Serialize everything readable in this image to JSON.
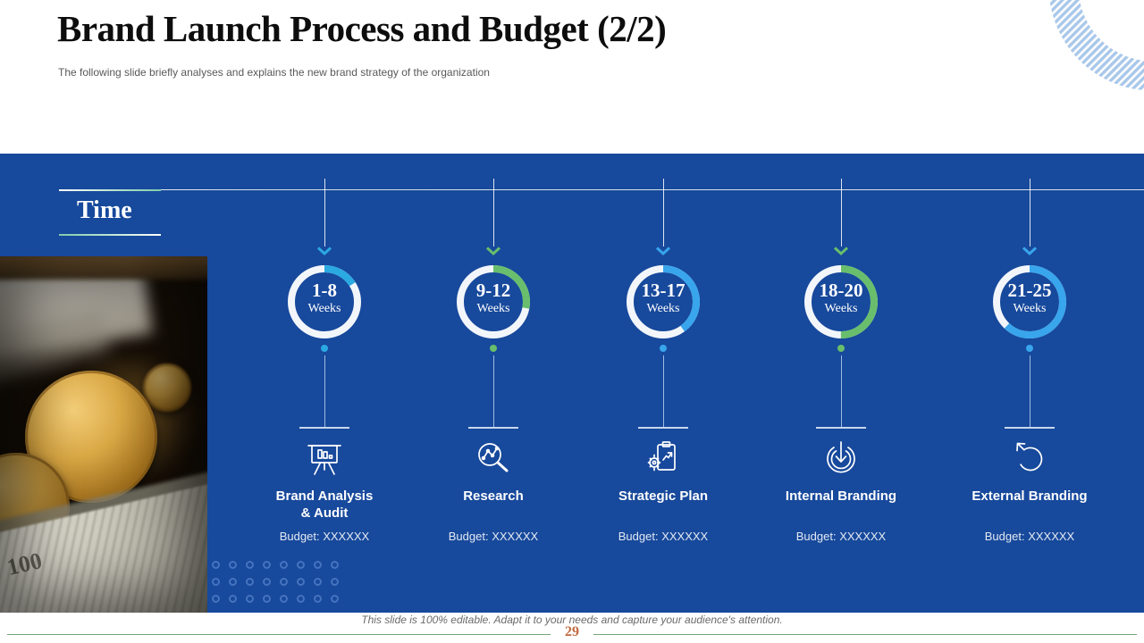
{
  "slide": {
    "title": "Brand Launch Process and Budget (2/2)",
    "subtitle": "The following slide briefly analyses and explains the new brand strategy of the organization",
    "footer_note": "This slide is 100% editable. Adapt it to your needs and capture your audience's attention.",
    "page_number": "29"
  },
  "timeline": {
    "axis_label": "Time",
    "items": [
      {
        "weeks_range": "1-8",
        "weeks_unit": "Weeks",
        "label_line1": "Brand Analysis",
        "label_line2": "& Audit",
        "budget": "Budget: XXXXXX",
        "accent_color": "#2BA9E1",
        "progress_pct": 16,
        "icon": "presentation-bar-chart-icon"
      },
      {
        "weeks_range": "9-12",
        "weeks_unit": "Weeks",
        "label_line1": "Research",
        "label_line2": "",
        "budget": "Budget: XXXXXX",
        "accent_color": "#68BE6C",
        "progress_pct": 28,
        "icon": "research-magnifier-icon"
      },
      {
        "weeks_range": "13-17",
        "weeks_unit": "Weeks",
        "label_line1": "Strategic Plan",
        "label_line2": "",
        "budget": "Budget: XXXXXX",
        "accent_color": "#38A5EC",
        "progress_pct": 40,
        "icon": "strategic-plan-clipboard-gear-icon"
      },
      {
        "weeks_range": "18-20",
        "weeks_unit": "Weeks",
        "label_line1": "Internal Branding",
        "label_line2": "",
        "budget": "Budget: XXXXXX",
        "accent_color": "#68BE6C",
        "progress_pct": 50,
        "icon": "internal-branding-inward-arrow-icon"
      },
      {
        "weeks_range": "21-25",
        "weeks_unit": "Weeks",
        "label_line1": "External Branding",
        "label_line2": "",
        "budget": "Budget: XXXXXX",
        "accent_color": "#38A5EC",
        "progress_pct": 62,
        "icon": "external-branding-rotate-arrow-icon"
      }
    ]
  },
  "photo": {
    "description": "gold coins on dollar bills",
    "bill_text": "100"
  },
  "colors": {
    "panel": "#17499C",
    "footer_line": "#76A576",
    "page_number": "#C2693E",
    "stripe_arc": "#A9C8EA"
  }
}
